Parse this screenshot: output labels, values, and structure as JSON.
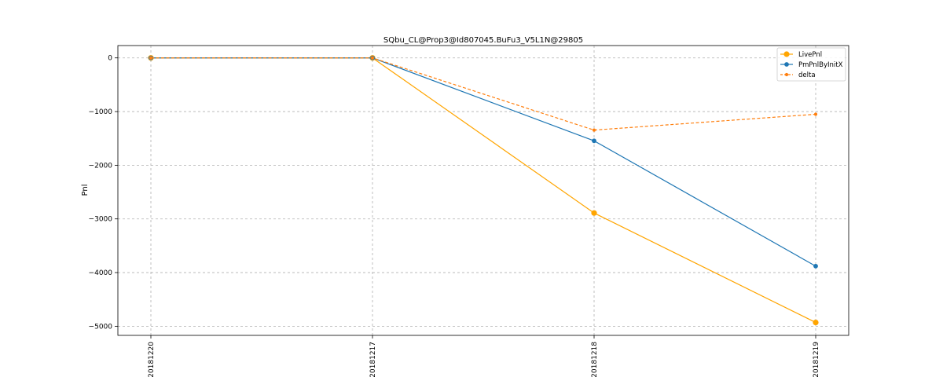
{
  "chart_data": {
    "type": "line",
    "title": "SQbu_CL@Prop3@Id807045.BuFu3_V5L1N@29805",
    "xlabel": "",
    "ylabel": "Pnl",
    "categories": [
      "20181220",
      "20181217",
      "20181218",
      "20181219"
    ],
    "yticks": [
      0,
      -1000,
      -2000,
      -3000,
      -4000,
      -5000
    ],
    "ylim": [
      -5170,
      230
    ],
    "grid": true,
    "legend_position": "top-right",
    "series": [
      {
        "name": "LivePnl",
        "color": "#FFA500",
        "linestyle": "solid",
        "marker": "circle-large",
        "values": [
          0,
          0,
          -2890,
          -4930
        ]
      },
      {
        "name": "PmPnlByInitX",
        "color": "#1F77B4",
        "linestyle": "solid",
        "marker": "circle",
        "values": [
          0,
          0,
          -1545,
          -3880
        ]
      },
      {
        "name": "delta",
        "color": "#FF7F0E",
        "linestyle": "dashed",
        "marker": "circle-small",
        "values": [
          0,
          0,
          -1345,
          -1050
        ]
      }
    ]
  }
}
